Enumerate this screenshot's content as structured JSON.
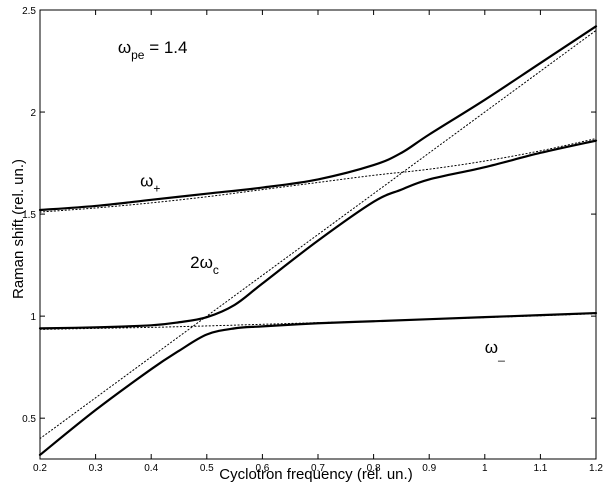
{
  "chart_data": {
    "type": "line",
    "title": "",
    "xlabel": "Cyclotron frequency (rel. un.)",
    "ylabel": "Raman shift  (rel. un.)",
    "xlim": [
      0.2,
      1.2
    ],
    "ylim": [
      0.3,
      2.5
    ],
    "xticks": [
      0.2,
      0.3,
      0.4,
      0.5,
      0.6,
      0.7,
      0.8,
      0.9,
      1,
      1.1,
      1.2
    ],
    "xtick_labels": [
      "0.2",
      "0.3",
      "0.4",
      "0.5",
      "0.6",
      "0.7",
      "0.8",
      "0.9",
      "1",
      "1.1",
      "1.2"
    ],
    "yticks": [
      0.5,
      1,
      1.5,
      2,
      2.5
    ],
    "ytick_labels": [
      "0.5",
      "1",
      "1.5",
      "2",
      "2.5"
    ],
    "grid": false,
    "series": [
      {
        "style": "solid",
        "x": [
          0.2,
          0.3,
          0.4,
          0.5,
          0.6,
          0.7,
          0.8,
          0.85,
          0.9,
          1.0,
          1.1,
          1.2
        ],
        "y": [
          1.52,
          1.54,
          1.57,
          1.6,
          1.63,
          1.67,
          1.74,
          1.8,
          1.89,
          2.06,
          2.24,
          2.42
        ]
      },
      {
        "style": "solid",
        "x": [
          0.2,
          0.3,
          0.4,
          0.45,
          0.5,
          0.55,
          0.6,
          0.7,
          0.8,
          0.85,
          0.9,
          1.0,
          1.1,
          1.2
        ],
        "y": [
          0.94,
          0.945,
          0.955,
          0.97,
          0.995,
          1.055,
          1.16,
          1.37,
          1.56,
          1.62,
          1.67,
          1.73,
          1.8,
          1.86
        ]
      },
      {
        "style": "solid",
        "x": [
          0.2,
          0.3,
          0.4,
          0.45,
          0.5,
          0.55,
          0.6,
          0.7,
          0.8,
          0.9,
          1.0,
          1.1,
          1.2
        ],
        "y": [
          0.32,
          0.54,
          0.74,
          0.83,
          0.91,
          0.94,
          0.95,
          0.965,
          0.975,
          0.985,
          0.995,
          1.005,
          1.015
        ]
      },
      {
        "style": "dotted",
        "x": [
          0.2,
          1.2
        ],
        "y": [
          0.4,
          2.4
        ]
      },
      {
        "style": "dotted",
        "x": [
          0.2,
          0.3,
          0.4,
          0.5,
          0.6,
          0.7,
          0.8,
          0.9,
          1.0,
          1.1,
          1.2
        ],
        "y": [
          1.51,
          1.53,
          1.555,
          1.585,
          1.62,
          1.655,
          1.69,
          1.72,
          1.76,
          1.81,
          1.87
        ]
      },
      {
        "style": "dotted",
        "x": [
          0.2,
          0.3,
          0.4,
          0.5,
          0.6,
          0.7,
          0.8,
          0.9,
          1.0,
          1.1,
          1.2
        ],
        "y": [
          0.935,
          0.94,
          0.945,
          0.952,
          0.96,
          0.968,
          0.976,
          0.984,
          0.993,
          1.002,
          1.012
        ]
      }
    ],
    "annotations": [
      {
        "base": "ω",
        "sub": "pe",
        "tail": " = 1.4",
        "x": 0.34,
        "y": 2.29
      },
      {
        "base": "ω",
        "sub": "+",
        "tail": "",
        "x": 0.38,
        "y": 1.635
      },
      {
        "base": "2ω",
        "sub": "c",
        "tail": "",
        "x": 0.47,
        "y": 1.235
      },
      {
        "base": "ω",
        "sub": "_",
        "tail": "",
        "x": 1.0,
        "y": 0.82
      }
    ]
  }
}
